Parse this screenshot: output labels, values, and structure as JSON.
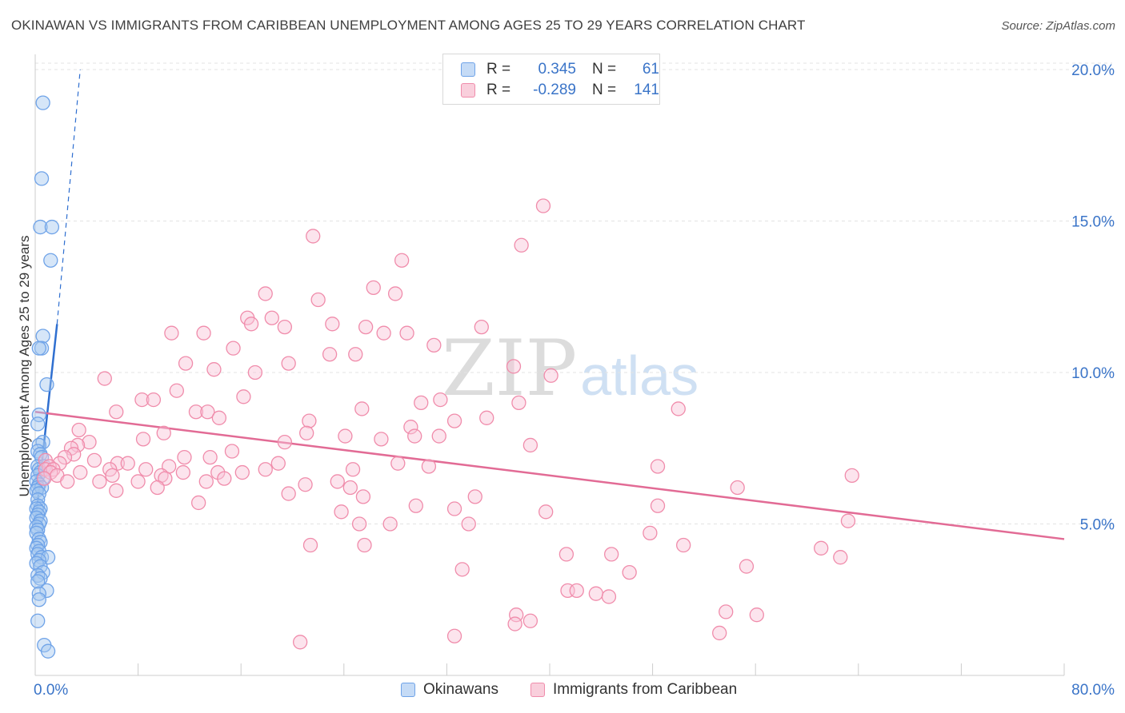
{
  "title": "OKINAWAN VS IMMIGRANTS FROM CARIBBEAN UNEMPLOYMENT AMONG AGES 25 TO 29 YEARS CORRELATION CHART",
  "source": "Source: ZipAtlas.com",
  "watermark": {
    "main": "ZIP",
    "suffix": "atlas"
  },
  "legend": {
    "rows": [
      {
        "r_label": "R =",
        "r_value": "0.345",
        "n_label": "N =",
        "n_value": "61"
      },
      {
        "r_label": "R =",
        "r_value": "-0.289",
        "n_label": "N =",
        "n_value": "141"
      }
    ]
  },
  "bottom_legend": [
    "Okinawans",
    "Immigrants from Caribbean"
  ],
  "colors": {
    "okinawan": "#6fa3e8",
    "okinawan_line": "#2f6fd0",
    "caribbean": "#f08cab",
    "caribbean_line": "#e26b95",
    "tick_label": "#3a74c8"
  },
  "chart_data": {
    "type": "scatter",
    "title": "OKINAWAN VS IMMIGRANTS FROM CARIBBEAN UNEMPLOYMENT AMONG AGES 25 TO 29 YEARS CORRELATION CHART",
    "xlabel": "",
    "ylabel": "Unemployment Among Ages 25 to 29 years",
    "xlim": [
      0,
      80
    ],
    "ylim": [
      0,
      20.5
    ],
    "x_tick_labels": [
      "0.0%",
      "80.0%"
    ],
    "y_ticks": [
      5,
      10,
      15,
      20
    ],
    "y_tick_labels": [
      "5.0%",
      "10.0%",
      "15.0%",
      "20.0%"
    ],
    "grid": true,
    "legend_position": "top-center",
    "series": [
      {
        "name": "Okinawans",
        "color": "#6fa3e8",
        "points": [
          [
            0.6,
            18.9
          ],
          [
            0.5,
            16.4
          ],
          [
            0.4,
            14.8
          ],
          [
            1.3,
            14.8
          ],
          [
            1.2,
            13.7
          ],
          [
            0.6,
            11.2
          ],
          [
            0.5,
            10.8
          ],
          [
            0.3,
            10.8
          ],
          [
            0.9,
            9.6
          ],
          [
            0.3,
            8.6
          ],
          [
            0.2,
            8.3
          ],
          [
            0.6,
            7.7
          ],
          [
            0.3,
            7.6
          ],
          [
            0.2,
            7.4
          ],
          [
            0.4,
            7.3
          ],
          [
            0.5,
            7.2
          ],
          [
            0.2,
            6.9
          ],
          [
            0.7,
            6.9
          ],
          [
            0.3,
            6.8
          ],
          [
            0.4,
            6.7
          ],
          [
            0.2,
            6.6
          ],
          [
            0.6,
            6.5
          ],
          [
            0.1,
            6.4
          ],
          [
            0.3,
            6.3
          ],
          [
            0.2,
            6.2
          ],
          [
            0.5,
            6.2
          ],
          [
            0.1,
            6.1
          ],
          [
            0.3,
            6.0
          ],
          [
            0.2,
            5.8
          ],
          [
            0.2,
            5.6
          ],
          [
            0.4,
            5.5
          ],
          [
            0.1,
            5.5
          ],
          [
            0.3,
            5.4
          ],
          [
            0.2,
            5.3
          ],
          [
            0.1,
            5.2
          ],
          [
            0.4,
            5.1
          ],
          [
            0.3,
            5.0
          ],
          [
            0.1,
            4.9
          ],
          [
            0.2,
            4.8
          ],
          [
            0.1,
            4.7
          ],
          [
            0.3,
            4.5
          ],
          [
            0.4,
            4.4
          ],
          [
            0.2,
            4.3
          ],
          [
            0.1,
            4.2
          ],
          [
            0.3,
            4.1
          ],
          [
            0.2,
            4.0
          ],
          [
            0.5,
            3.9
          ],
          [
            1.0,
            3.9
          ],
          [
            0.3,
            3.8
          ],
          [
            0.1,
            3.7
          ],
          [
            0.4,
            3.6
          ],
          [
            0.6,
            3.4
          ],
          [
            0.2,
            3.3
          ],
          [
            0.4,
            3.2
          ],
          [
            0.2,
            3.1
          ],
          [
            0.9,
            2.8
          ],
          [
            0.3,
            2.7
          ],
          [
            0.3,
            2.5
          ],
          [
            0.2,
            1.8
          ],
          [
            0.7,
            1.0
          ],
          [
            1.0,
            0.8
          ]
        ]
      },
      {
        "name": "Immigrants from Caribbean",
        "color": "#f08cab",
        "points": [
          [
            39.5,
            15.5
          ],
          [
            21.6,
            14.5
          ],
          [
            37.8,
            14.2
          ],
          [
            28.5,
            13.7
          ],
          [
            26.3,
            12.8
          ],
          [
            17.9,
            12.6
          ],
          [
            28.0,
            12.6
          ],
          [
            22.0,
            12.4
          ],
          [
            16.5,
            11.8
          ],
          [
            18.4,
            11.8
          ],
          [
            16.8,
            11.6
          ],
          [
            23.1,
            11.6
          ],
          [
            19.4,
            11.5
          ],
          [
            25.7,
            11.5
          ],
          [
            34.7,
            11.5
          ],
          [
            10.6,
            11.3
          ],
          [
            13.1,
            11.3
          ],
          [
            27.1,
            11.3
          ],
          [
            28.9,
            11.3
          ],
          [
            31.0,
            10.9
          ],
          [
            15.4,
            10.8
          ],
          [
            22.9,
            10.6
          ],
          [
            24.9,
            10.6
          ],
          [
            11.7,
            10.3
          ],
          [
            19.7,
            10.3
          ],
          [
            37.2,
            10.2
          ],
          [
            13.9,
            10.1
          ],
          [
            17.1,
            10.0
          ],
          [
            40.1,
            9.9
          ],
          [
            5.4,
            9.8
          ],
          [
            11.0,
            9.4
          ],
          [
            16.2,
            9.2
          ],
          [
            8.3,
            9.1
          ],
          [
            9.2,
            9.1
          ],
          [
            30.0,
            9.0
          ],
          [
            31.5,
            9.1
          ],
          [
            37.6,
            9.0
          ],
          [
            25.4,
            8.8
          ],
          [
            50.0,
            8.8
          ],
          [
            6.3,
            8.7
          ],
          [
            12.5,
            8.7
          ],
          [
            13.4,
            8.7
          ],
          [
            14.3,
            8.5
          ],
          [
            21.3,
            8.4
          ],
          [
            32.6,
            8.4
          ],
          [
            35.1,
            8.5
          ],
          [
            29.2,
            8.2
          ],
          [
            3.4,
            8.1
          ],
          [
            10.0,
            8.0
          ],
          [
            21.1,
            8.0
          ],
          [
            24.1,
            7.9
          ],
          [
            29.5,
            7.9
          ],
          [
            31.4,
            7.9
          ],
          [
            8.4,
            7.8
          ],
          [
            26.9,
            7.8
          ],
          [
            19.4,
            7.7
          ],
          [
            4.2,
            7.7
          ],
          [
            3.3,
            7.6
          ],
          [
            38.5,
            7.6
          ],
          [
            2.8,
            7.5
          ],
          [
            15.3,
            7.4
          ],
          [
            3.0,
            7.3
          ],
          [
            2.3,
            7.2
          ],
          [
            11.6,
            7.2
          ],
          [
            13.6,
            7.2
          ],
          [
            0.8,
            7.1
          ],
          [
            4.6,
            7.1
          ],
          [
            1.9,
            7.0
          ],
          [
            6.4,
            7.0
          ],
          [
            7.2,
            7.0
          ],
          [
            18.9,
            7.0
          ],
          [
            28.2,
            7.0
          ],
          [
            48.4,
            6.9
          ],
          [
            1.1,
            6.9
          ],
          [
            10.4,
            6.9
          ],
          [
            30.6,
            6.9
          ],
          [
            0.8,
            6.8
          ],
          [
            1.4,
            6.8
          ],
          [
            5.8,
            6.8
          ],
          [
            8.6,
            6.8
          ],
          [
            17.9,
            6.8
          ],
          [
            24.7,
            6.8
          ],
          [
            1.2,
            6.7
          ],
          [
            3.5,
            6.7
          ],
          [
            11.5,
            6.7
          ],
          [
            14.2,
            6.7
          ],
          [
            16.1,
            6.7
          ],
          [
            1.7,
            6.6
          ],
          [
            6.0,
            6.6
          ],
          [
            9.8,
            6.6
          ],
          [
            0.7,
            6.5
          ],
          [
            10.1,
            6.5
          ],
          [
            14.7,
            6.5
          ],
          [
            63.5,
            6.6
          ],
          [
            2.5,
            6.4
          ],
          [
            5.0,
            6.4
          ],
          [
            8.0,
            6.4
          ],
          [
            13.3,
            6.4
          ],
          [
            23.5,
            6.4
          ],
          [
            21.0,
            6.3
          ],
          [
            9.5,
            6.2
          ],
          [
            6.3,
            6.1
          ],
          [
            24.5,
            6.2
          ],
          [
            54.6,
            6.2
          ],
          [
            19.7,
            6.0
          ],
          [
            25.5,
            5.9
          ],
          [
            34.2,
            5.9
          ],
          [
            12.7,
            5.7
          ],
          [
            29.6,
            5.6
          ],
          [
            32.6,
            5.5
          ],
          [
            48.4,
            5.6
          ],
          [
            23.8,
            5.4
          ],
          [
            39.7,
            5.4
          ],
          [
            25.2,
            5.0
          ],
          [
            27.6,
            5.0
          ],
          [
            33.7,
            5.0
          ],
          [
            63.2,
            5.1
          ],
          [
            47.8,
            4.7
          ],
          [
            50.4,
            4.3
          ],
          [
            21.4,
            4.3
          ],
          [
            25.6,
            4.3
          ],
          [
            61.1,
            4.2
          ],
          [
            41.3,
            4.0
          ],
          [
            44.8,
            4.0
          ],
          [
            62.6,
            3.9
          ],
          [
            55.3,
            3.6
          ],
          [
            33.2,
            3.5
          ],
          [
            46.2,
            3.4
          ],
          [
            41.4,
            2.8
          ],
          [
            42.1,
            2.8
          ],
          [
            43.6,
            2.7
          ],
          [
            44.6,
            2.6
          ],
          [
            37.4,
            2.0
          ],
          [
            53.7,
            2.1
          ],
          [
            56.1,
            2.0
          ],
          [
            38.5,
            1.8
          ],
          [
            37.3,
            1.7
          ],
          [
            53.2,
            1.4
          ],
          [
            32.6,
            1.3
          ],
          [
            20.6,
            1.1
          ]
        ]
      }
    ],
    "trend_lines": [
      {
        "series": "Okinawans",
        "x": [
          0,
          1.7
        ],
        "y": [
          5.0,
          11.6
        ],
        "dashed_extension_to": [
          3.5,
          20.0
        ]
      },
      {
        "series": "Immigrants from Caribbean",
        "x": [
          0,
          80
        ],
        "y": [
          8.7,
          4.5
        ]
      }
    ]
  }
}
